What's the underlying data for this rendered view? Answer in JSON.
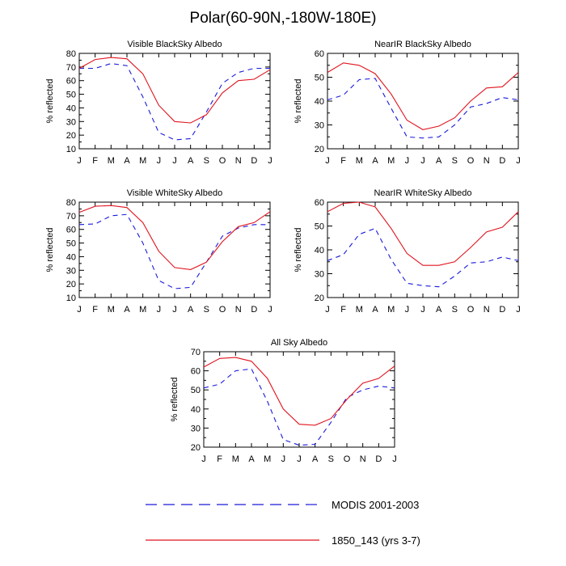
{
  "title": "Polar(60-90N,-180W-180E)",
  "colors": {
    "modis": "#1a1adb",
    "model": "#e0141e",
    "axis": "#000000"
  },
  "legend": [
    {
      "label": "MODIS 2001-2003",
      "style": "dashed",
      "color": "#1a1adb"
    },
    {
      "label": "1850_143 (yrs 3-7)",
      "style": "solid",
      "color": "#e0141e"
    }
  ],
  "chart_data": [
    {
      "type": "line",
      "title": "Visible BlackSky Albedo",
      "ylabel": "% reflected",
      "categories": [
        "J",
        "F",
        "M",
        "A",
        "M",
        "J",
        "J",
        "A",
        "S",
        "O",
        "N",
        "D",
        "J"
      ],
      "ylim": [
        10,
        80
      ],
      "yticks": [
        10,
        20,
        30,
        40,
        50,
        60,
        70,
        80
      ],
      "series": [
        {
          "name": "MODIS 2001-2003",
          "values": [
            69,
            69,
            72.5,
            71,
            48,
            22,
            16.5,
            17.5,
            37,
            58,
            66,
            69,
            69
          ]
        },
        {
          "name": "1850_143 (yrs 3-7)",
          "values": [
            69,
            75.5,
            77,
            76,
            65,
            42,
            30,
            29,
            35,
            51,
            60,
            61,
            68
          ]
        }
      ]
    },
    {
      "type": "line",
      "title": "NearIR BlackSky Albedo",
      "ylabel": "% reflected",
      "categories": [
        "J",
        "F",
        "M",
        "A",
        "M",
        "J",
        "J",
        "A",
        "S",
        "O",
        "N",
        "D",
        "J"
      ],
      "ylim": [
        20,
        60
      ],
      "yticks": [
        20,
        30,
        40,
        50,
        60
      ],
      "series": [
        {
          "name": "MODIS 2001-2003",
          "values": [
            40.5,
            42.5,
            49,
            49.5,
            37,
            25,
            24.5,
            25,
            30,
            37.5,
            39,
            41.5,
            40.5
          ]
        },
        {
          "name": "1850_143 (yrs 3-7)",
          "values": [
            52,
            56,
            55,
            51.5,
            43,
            32,
            28,
            29.5,
            33,
            40,
            45.5,
            46,
            52
          ]
        }
      ]
    },
    {
      "type": "line",
      "title": "Visible WhiteSky Albedo",
      "ylabel": "% reflected",
      "categories": [
        "J",
        "F",
        "M",
        "A",
        "M",
        "J",
        "J",
        "A",
        "S",
        "O",
        "N",
        "D",
        "J"
      ],
      "ylim": [
        10,
        80
      ],
      "yticks": [
        10,
        20,
        30,
        40,
        50,
        60,
        70,
        80
      ],
      "series": [
        {
          "name": "MODIS 2001-2003",
          "values": [
            63.5,
            64,
            70,
            71,
            50,
            22.5,
            16.5,
            17.5,
            36,
            55,
            61,
            63.5,
            63.5
          ]
        },
        {
          "name": "1850_143 (yrs 3-7)",
          "values": [
            72.5,
            77,
            77.5,
            76,
            65,
            44,
            32,
            30.5,
            36,
            51,
            62,
            65,
            73
          ]
        }
      ]
    },
    {
      "type": "line",
      "title": "NearIR WhiteSky Albedo",
      "ylabel": "% reflected",
      "categories": [
        "J",
        "F",
        "M",
        "A",
        "M",
        "J",
        "J",
        "A",
        "S",
        "O",
        "N",
        "D",
        "J"
      ],
      "ylim": [
        20,
        60
      ],
      "yticks": [
        20,
        30,
        40,
        50,
        60
      ],
      "series": [
        {
          "name": "MODIS 2001-2003",
          "values": [
            35.5,
            38,
            46.5,
            49,
            36,
            26,
            25,
            24.5,
            29,
            34.5,
            35,
            37,
            35.5
          ]
        },
        {
          "name": "1850_143 (yrs 3-7)",
          "values": [
            56,
            59.5,
            60,
            58,
            49,
            38.5,
            33.5,
            33.5,
            35,
            41,
            47.5,
            49.5,
            56
          ]
        }
      ]
    },
    {
      "type": "line",
      "title": "All Sky Albedo",
      "ylabel": "% reflected",
      "categories": [
        "J",
        "F",
        "M",
        "A",
        "M",
        "J",
        "J",
        "A",
        "S",
        "O",
        "N",
        "D",
        "J"
      ],
      "ylim": [
        20,
        70
      ],
      "yticks": [
        20,
        30,
        40,
        50,
        60,
        70
      ],
      "series": [
        {
          "name": "MODIS 2001-2003",
          "values": [
            51,
            53,
            60,
            61,
            44,
            24,
            21,
            21.5,
            33,
            46,
            50,
            52,
            51
          ]
        },
        {
          "name": "1850_143 (yrs 3-7)",
          "values": [
            62,
            66.5,
            67,
            65,
            56,
            40,
            32,
            31.5,
            35,
            45,
            53.5,
            56,
            62.5
          ]
        }
      ]
    }
  ]
}
